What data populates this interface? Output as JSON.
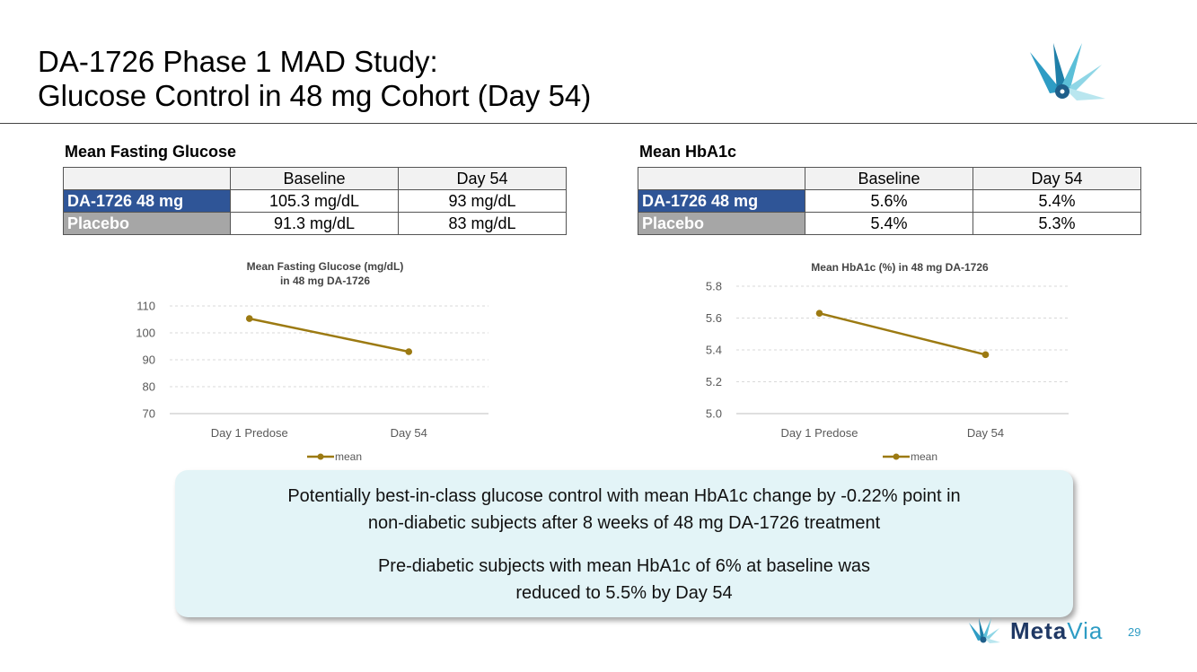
{
  "title": {
    "line1": "DA-1726 Phase 1 MAD Study:",
    "line2": "Glucose Control in 48 mg Cohort (Day 54)"
  },
  "tables": {
    "glucose": {
      "heading": "Mean Fasting Glucose",
      "header": [
        "",
        "Baseline",
        "Day 54"
      ],
      "rows": [
        {
          "label": "DA-1726 48 mg",
          "baseline": "105.3 mg/dL",
          "day54": "93 mg/dL"
        },
        {
          "label": "Placebo",
          "baseline": "91.3 mg/dL",
          "day54": "83 mg/dL"
        }
      ]
    },
    "hba1c": {
      "heading": "Mean HbA1c",
      "header": [
        "",
        "Baseline",
        "Day 54"
      ],
      "rows": [
        {
          "label": "DA-1726 48 mg",
          "baseline": "5.6%",
          "day54": "5.4%"
        },
        {
          "label": "Placebo",
          "baseline": "5.4%",
          "day54": "5.3%"
        }
      ]
    }
  },
  "chart_data": [
    {
      "type": "line",
      "title": "Mean Fasting Glucose (mg/dL)",
      "subtitle": "in 48 mg DA-1726",
      "categories": [
        "Day 1 Predose",
        "Day 54"
      ],
      "series": [
        {
          "name": "mean",
          "values": [
            105.3,
            93
          ]
        }
      ],
      "ylim": [
        70,
        110
      ],
      "yticks": [
        70,
        80,
        90,
        100,
        110
      ],
      "grid": true,
      "legend": "bottom",
      "line_color": "#9c7a12"
    },
    {
      "type": "line",
      "title": "Mean HbA1c (%) in 48 mg DA-1726",
      "categories": [
        "Day 1 Predose",
        "Day 54"
      ],
      "series": [
        {
          "name": "mean",
          "values": [
            5.63,
            5.37
          ]
        }
      ],
      "ylim": [
        5.0,
        5.8
      ],
      "yticks": [
        5.0,
        5.2,
        5.4,
        5.6,
        5.8
      ],
      "grid": true,
      "legend": "bottom",
      "line_color": "#9c7a12"
    }
  ],
  "callout": {
    "para1_line1": "Potentially best-in-class glucose control with mean HbA1c change by -0.22% point in",
    "para1_line2": "non-diabetic subjects after 8 weeks of 48 mg DA-1726 treatment",
    "para2_line1": "Pre-diabetic subjects with mean HbA1c of 6% at baseline was",
    "para2_line2": "reduced to 5.5% by Day 54"
  },
  "footer": {
    "brand_part1": "Meta",
    "brand_part2": "Via",
    "page_number": "29"
  },
  "colors": {
    "drug_row": "#2f5597",
    "placebo_row": "#a6a6a6",
    "callout_bg": "#e3f4f7",
    "brand_dark": "#1f3864",
    "brand_light": "#2e9cc4"
  }
}
